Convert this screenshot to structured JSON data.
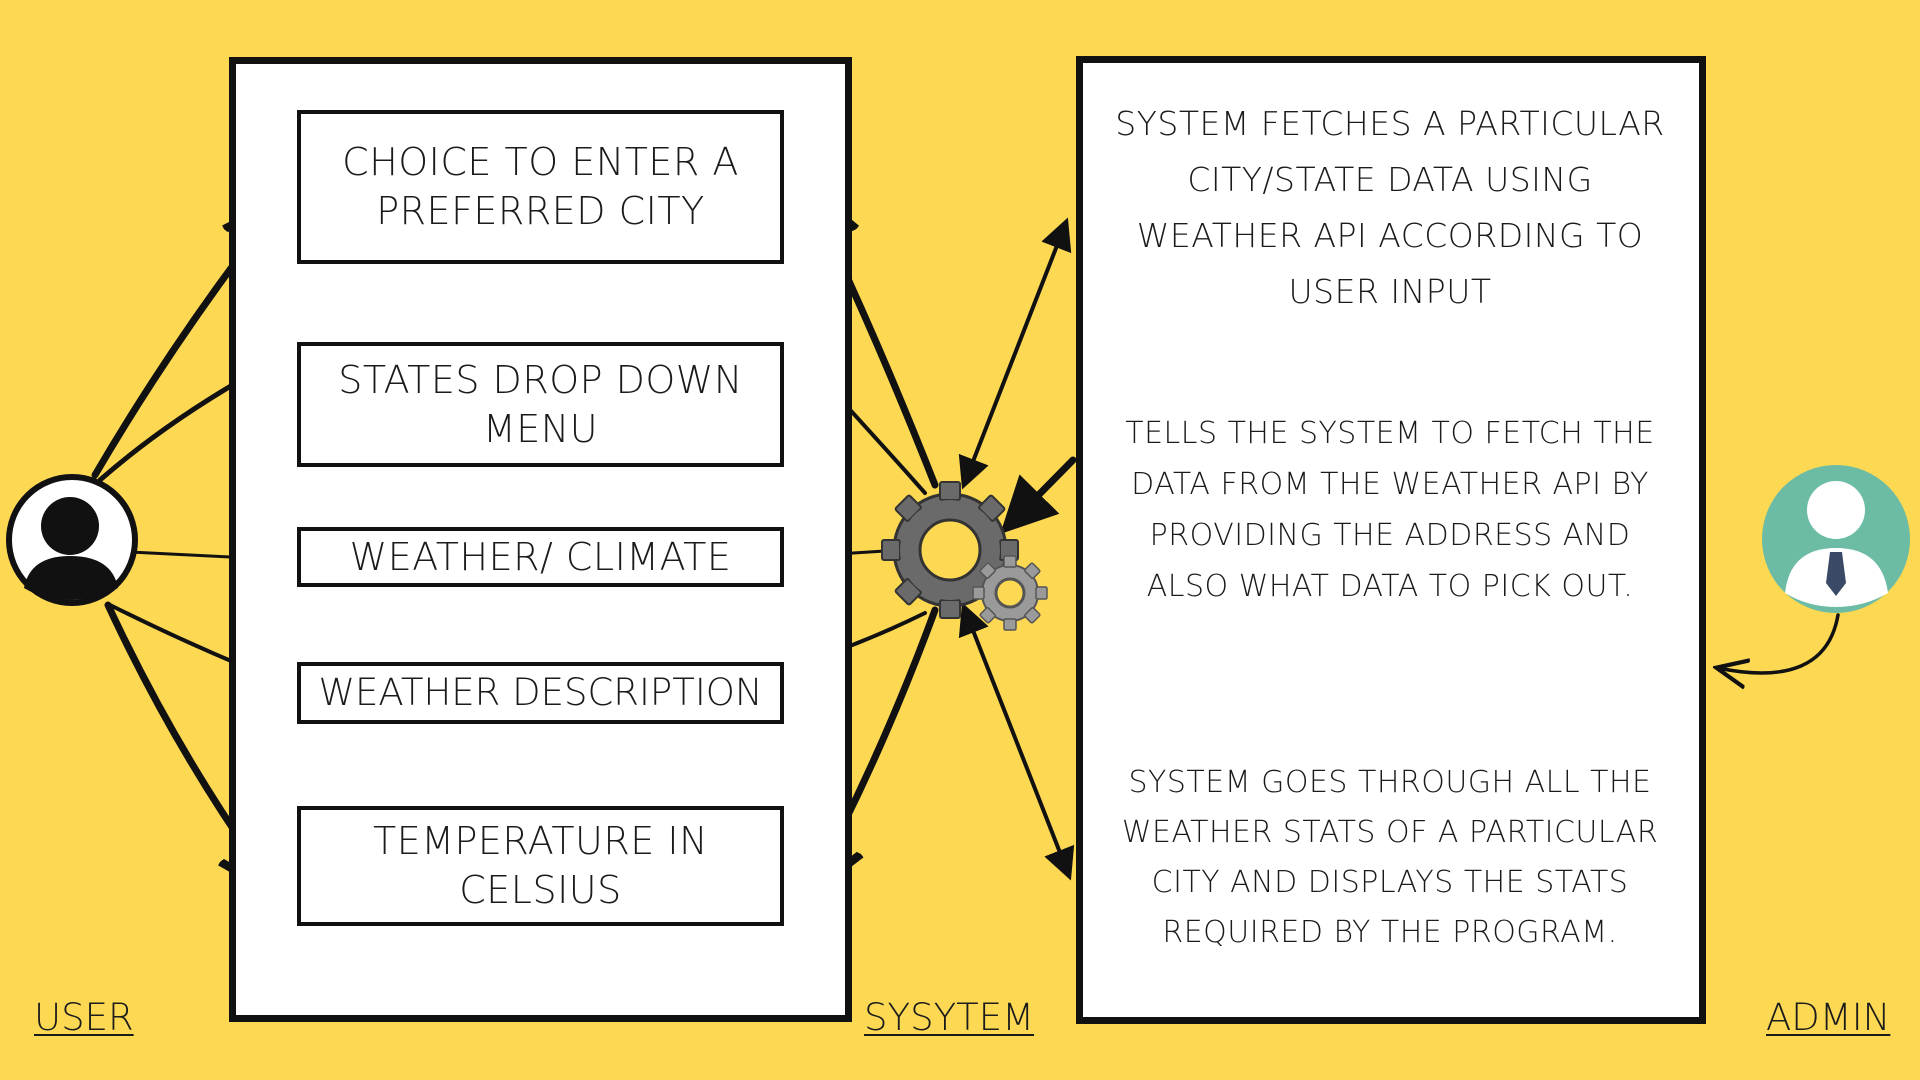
{
  "colors": {
    "background": "#FCD853",
    "box_border": "#111111",
    "text": "#1b1b1b",
    "gear_dark": "#5f5f5f",
    "gear_light": "#9a9a9a",
    "admin_avatar": "#6CBBA5",
    "tie": "#3a4a66"
  },
  "labels": {
    "user": "USER",
    "system": "SYSYTEM",
    "admin": "ADMIN"
  },
  "user_features": [
    {
      "id": "city",
      "text": "CHOICE TO ENTER A PREFERRED CITY"
    },
    {
      "id": "states",
      "text": "STATES DROP DOWN MENU"
    },
    {
      "id": "weather",
      "text": "WEATHER/ CLIMATE"
    },
    {
      "id": "description",
      "text": "WEATHER DESCRIPTION"
    },
    {
      "id": "temperature",
      "text": "TEMPERATURE IN CELSIUS"
    }
  ],
  "admin_notes": [
    "SYSTEM FETCHES A PARTICULAR CITY/STATE DATA USING WEATHER API ACCORDING TO USER INPUT",
    "TELLS THE SYSTEM TO FETCH THE DATA FROM THE WEATHER API BY PROVIDING THE ADDRESS AND ALSO WHAT DATA TO PICK OUT.",
    "SYSTEM GOES THROUGH ALL THE WEATHER STATS OF A PARTICULAR CITY AND DISPLAYS THE STATS REQUIRED BY THE PROGRAM."
  ],
  "icons": {
    "user": "user-avatar-icon",
    "system": "gears-icon",
    "admin": "admin-avatar-icon"
  }
}
